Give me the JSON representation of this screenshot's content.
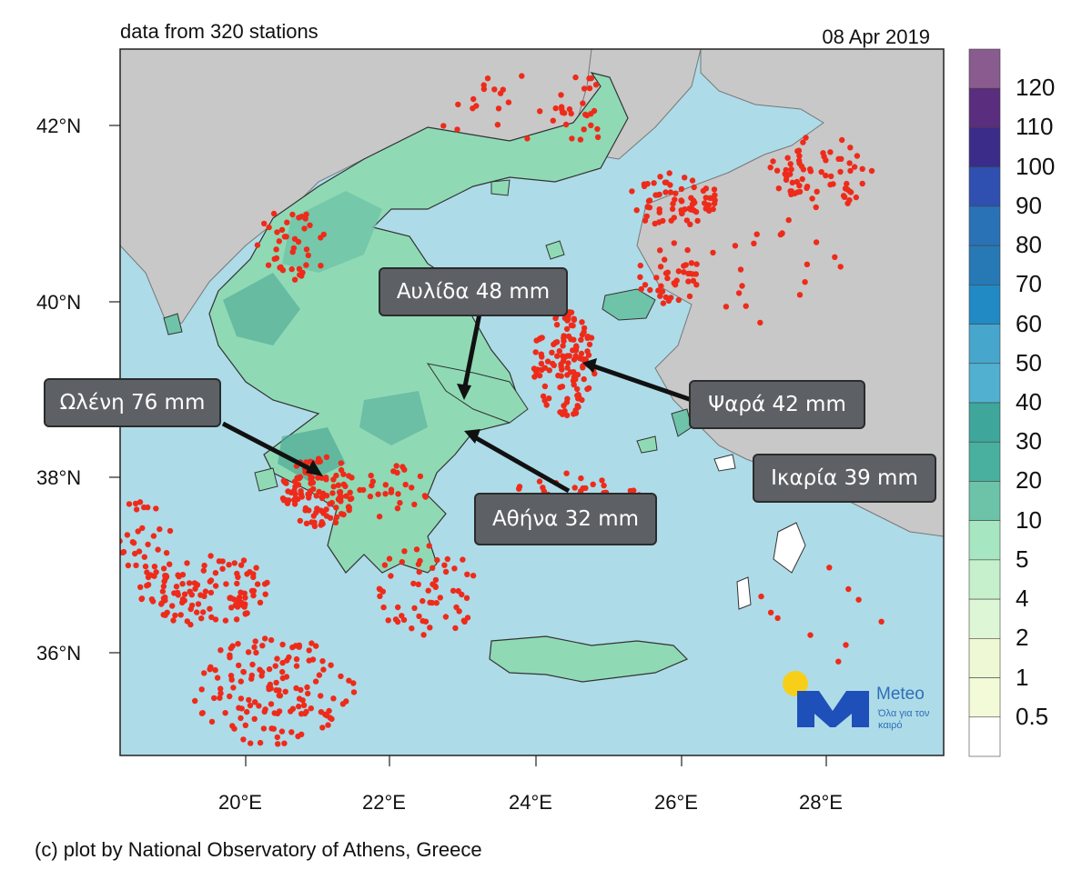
{
  "header": {
    "stations_text": "data from 320 stations",
    "date": "08 Apr 2019"
  },
  "footer": {
    "credit": "(c) plot by National Observatory of Athens, Greece"
  },
  "axes": {
    "lat_labels": [
      "42°N",
      "40°N",
      "38°N",
      "36°N"
    ],
    "lon_labels": [
      "20°E",
      "22°E",
      "24°E",
      "26°E",
      "28°E"
    ]
  },
  "colorbar": {
    "labels": [
      "120",
      "110",
      "100",
      "90",
      "80",
      "70",
      "60",
      "50",
      "40",
      "30",
      "20",
      "10",
      "5",
      "4",
      "2",
      "1",
      "0.5"
    ],
    "colors": [
      "#8a5b8e",
      "#5a2d7e",
      "#3b2c8a",
      "#2f50b0",
      "#2a72b6",
      "#2679b5",
      "#2189c4",
      "#47a6cc",
      "#51b0d0",
      "#3ea69a",
      "#49b0a0",
      "#6cc3a8",
      "#a6e6c0",
      "#c6f0cc",
      "#ddf6d6",
      "#eef8d4",
      "#f3fad8",
      "#ffffff"
    ]
  },
  "map_colors": {
    "sea": "#aedbe8",
    "land": "#c8c8c8",
    "greece_land": "#8fdab5",
    "station": "#ee2b1a"
  },
  "callouts": [
    {
      "id": "avlida",
      "label": "Αυλίδα 48 mm"
    },
    {
      "id": "olenh",
      "label": "Ωλένη 76 mm"
    },
    {
      "id": "psara",
      "label": "Ψαρά 42 mm"
    },
    {
      "id": "ikaria",
      "label": "Ικαρία 39 mm"
    },
    {
      "id": "athina",
      "label": "Αθήνα 32 mm"
    }
  ],
  "logo": {
    "name": "Meteo",
    "slogan": "Όλα για τον καιρό"
  }
}
